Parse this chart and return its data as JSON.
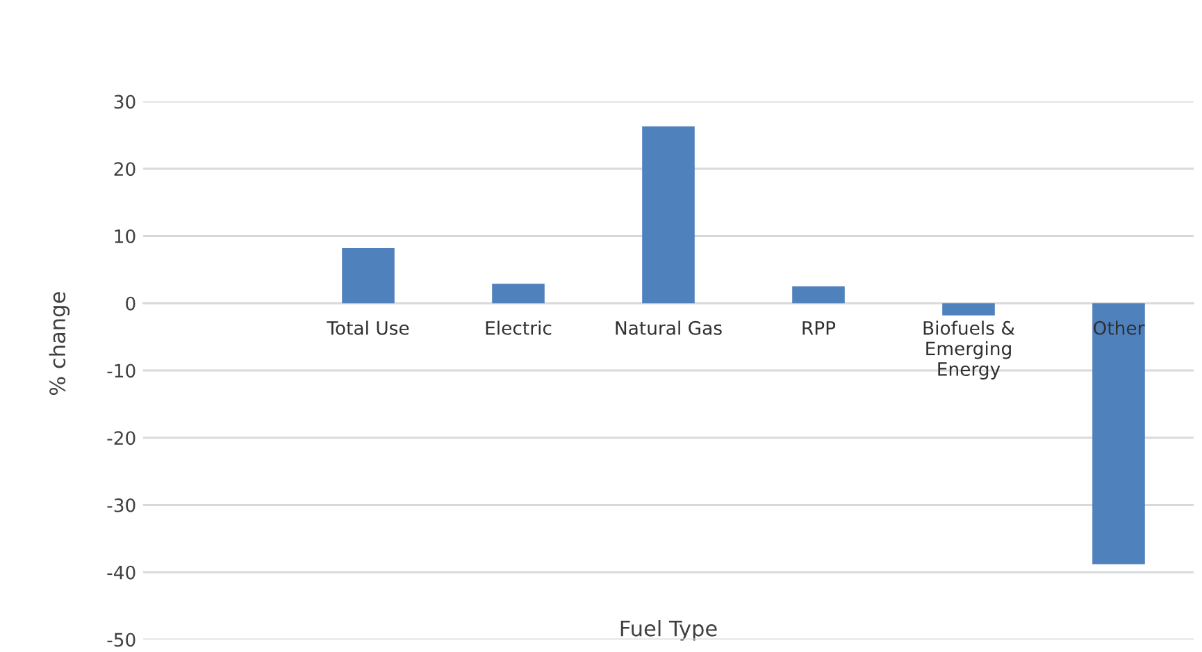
{
  "chart_data": {
    "type": "bar",
    "xlabel": "Fuel Type",
    "ylabel": "% change",
    "categories": [
      null,
      "Total Use",
      "Electric",
      "Natural Gas",
      "RPP",
      "Biofuels &\nEmerging\nEnergy",
      "Other"
    ],
    "values": [
      null,
      8.2,
      2.9,
      26.3,
      2.5,
      -1.8,
      -38.8
    ],
    "color": "#4f81bd",
    "ylim": [
      -50,
      30
    ],
    "yticks": [
      -50,
      -40,
      -30,
      -20,
      -10,
      0,
      10,
      20,
      30
    ],
    "grid": "y",
    "legend": false
  }
}
